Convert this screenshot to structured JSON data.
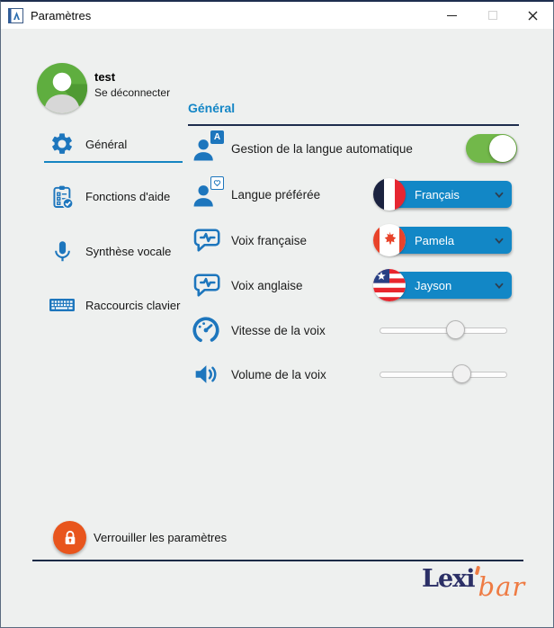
{
  "window": {
    "title": "Paramètres"
  },
  "user": {
    "name": "test",
    "logout_label": "Se déconnecter"
  },
  "sidebar": {
    "items": [
      {
        "label": "Général",
        "icon": "gear",
        "selected": true
      },
      {
        "label": "Fonctions d'aide",
        "icon": "clipboard-check",
        "selected": false
      },
      {
        "label": "Synthèse vocale",
        "icon": "microphone",
        "selected": false
      },
      {
        "label": "Raccourcis clavier",
        "icon": "keyboard",
        "selected": false
      }
    ]
  },
  "main": {
    "section_title": "Général",
    "rows": [
      {
        "label": "Gestion de la langue automatique",
        "control": "toggle",
        "value": true
      },
      {
        "label": "Langue préférée",
        "control": "dropdown",
        "value": "Français",
        "flag": "france"
      },
      {
        "label": "Voix française",
        "control": "dropdown",
        "value": "Pamela",
        "flag": "canada"
      },
      {
        "label": "Voix anglaise",
        "control": "dropdown",
        "value": "Jayson",
        "flag": "usa"
      },
      {
        "label": "Vitesse de la voix",
        "control": "slider",
        "value_percent": 60
      },
      {
        "label": "Volume de la voix",
        "control": "slider",
        "value_percent": 65
      }
    ]
  },
  "icons": {
    "auto_language_badge": "A"
  },
  "footer": {
    "lock_label": "Verrouiller les paramètres",
    "brand_part1": "Lexi",
    "brand_part2": "bar"
  },
  "colors": {
    "accent_blue": "#1486c6",
    "icon_blue": "#1d76bd",
    "toggle_green": "#72b84a",
    "lock_orange": "#e8551d",
    "brand_navy": "#2b2f66",
    "brand_orange": "#ee7b43",
    "underline_navy": "#1e2d4d"
  }
}
